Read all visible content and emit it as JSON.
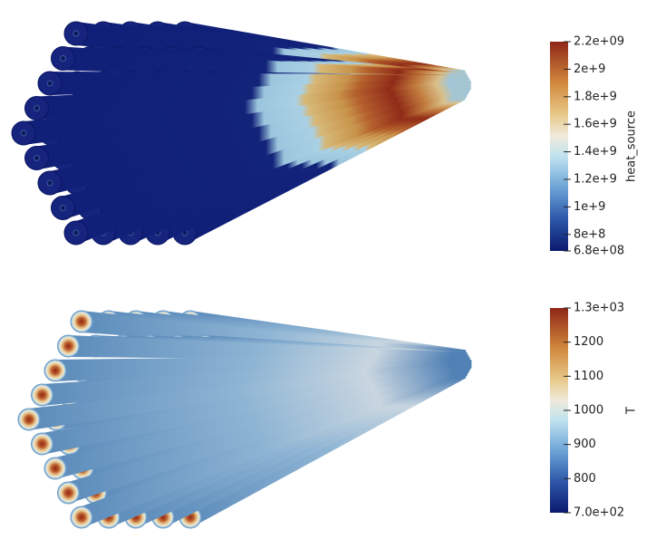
{
  "colorbars": [
    {
      "title": "heat_source",
      "range": [
        680000000,
        2200000000
      ],
      "ticks": [
        {
          "value": 2200000000,
          "label": "2.2e+09"
        },
        {
          "value": 2000000000,
          "label": "2e+9"
        },
        {
          "value": 1800000000,
          "label": "1.8e+9"
        },
        {
          "value": 1600000000,
          "label": "1.6e+9"
        },
        {
          "value": 1400000000,
          "label": "1.4e+9"
        },
        {
          "value": 1200000000,
          "label": "1.2e+9"
        },
        {
          "value": 1000000000,
          "label": "1e+9"
        },
        {
          "value": 800000000,
          "label": "8e+8"
        },
        {
          "value": 680000000,
          "label": "6.8e+08"
        }
      ]
    },
    {
      "title": "T",
      "range": [
        700,
        1300
      ],
      "ticks": [
        {
          "value": 1300,
          "label": "1.3e+03"
        },
        1200,
        1100,
        1000,
        900,
        800,
        {
          "value": 700,
          "label": "7.0e+02"
        }
      ]
    }
  ]
}
